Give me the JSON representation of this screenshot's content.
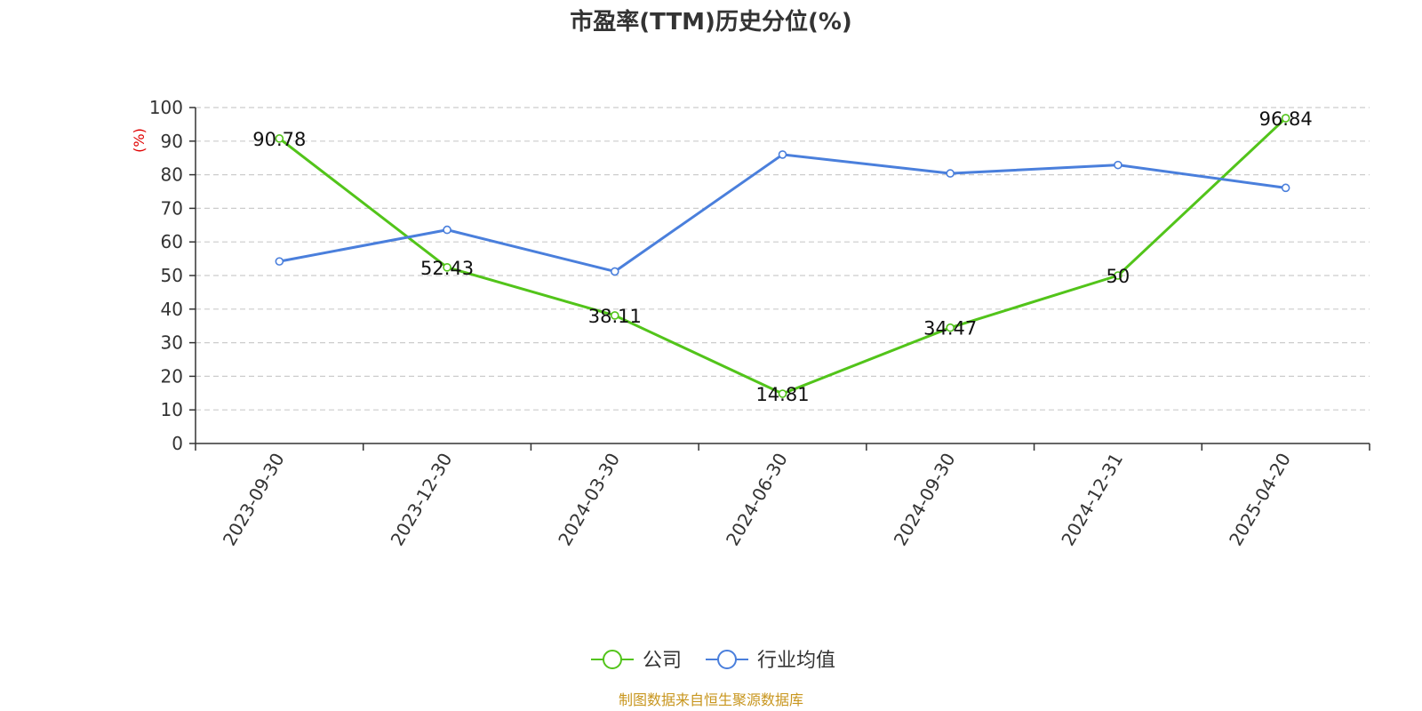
{
  "chart_data": {
    "type": "line",
    "title": "市盈率(TTM)历史分位(%)",
    "ylabel": "(%)",
    "ylim": [
      0,
      100
    ],
    "yticks": [
      0,
      10,
      20,
      30,
      40,
      50,
      60,
      70,
      80,
      90,
      100
    ],
    "categories": [
      "2023-09-30",
      "2023-12-30",
      "2024-03-30",
      "2024-06-30",
      "2024-09-30",
      "2024-12-31",
      "2025-04-20"
    ],
    "series": [
      {
        "name": "公司",
        "color": "#52c41a",
        "values": [
          90.78,
          52.43,
          38.11,
          14.81,
          34.47,
          50,
          96.84
        ],
        "labels": [
          "90.78",
          "52.43",
          "38.11",
          "14.81",
          "34.47",
          "50",
          "96.84"
        ]
      },
      {
        "name": "行业均值",
        "color": "#4a7fdc",
        "values": [
          54.2,
          63.6,
          51.2,
          86.0,
          80.4,
          82.9,
          76.1
        ]
      }
    ],
    "grid": true,
    "legend_position": "bottom-center",
    "source": "制图数据来自恒生聚源数据库",
    "ylabel_color": "#e00000",
    "source_color": "#c8961e"
  }
}
